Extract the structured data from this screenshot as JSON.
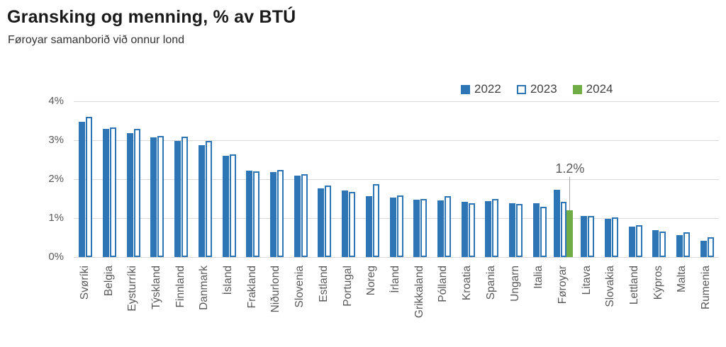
{
  "header": {
    "title": "Gransking og menning, % av BTÚ",
    "subtitle": "Føroyar samanborið við onnur lond"
  },
  "colors": {
    "blue": "#2e75b6",
    "green": "#70ad47",
    "grid": "#d9d9d9",
    "axis_text": "#595959",
    "legend_text": "#404040",
    "annotation_line": "#a6a6a6"
  },
  "chart_data": {
    "type": "bar",
    "title": "Gransking og menning, % av BTÚ",
    "subtitle": "Føroyar samanborið við onnur lond",
    "categories": [
      "Svøríki",
      "Belgia",
      "Eysturríki",
      "Týskland",
      "Finnland",
      "Danmark",
      "Ísland",
      "Frakland",
      "Niðurlond",
      "Slovenia",
      "Estland",
      "Portugal",
      "Noreg",
      "Írland",
      "Grikkaland",
      "Pólland",
      "Kroatia",
      "Spania",
      "Ungarn",
      "Italia",
      "Føroyar",
      "Litava",
      "Slovakia",
      "Lettland",
      "Kýpros",
      "Malta",
      "Rumenia"
    ],
    "series": [
      {
        "name": "2022",
        "style": "solid",
        "color": "#2e75b6",
        "values": [
          3.47,
          3.3,
          3.18,
          3.08,
          2.98,
          2.88,
          2.6,
          2.22,
          2.18,
          2.1,
          1.77,
          1.71,
          1.56,
          1.53,
          1.48,
          1.45,
          1.42,
          1.43,
          1.39,
          1.38,
          1.72,
          1.06,
          0.98,
          0.79,
          0.69,
          0.57,
          0.42
        ]
      },
      {
        "name": "2023",
        "style": "outline",
        "color": "#2e75b6",
        "values": [
          3.6,
          3.32,
          3.29,
          3.11,
          3.09,
          2.98,
          2.63,
          2.2,
          2.24,
          2.13,
          1.84,
          1.68,
          1.87,
          1.58,
          1.49,
          1.56,
          1.39,
          1.49,
          1.37,
          1.3,
          1.41,
          1.05,
          1.02,
          0.81,
          0.66,
          0.63,
          0.51
        ]
      },
      {
        "name": "2024",
        "style": "solid",
        "color": "#70ad47",
        "values": [
          null,
          null,
          null,
          null,
          null,
          null,
          null,
          null,
          null,
          null,
          null,
          null,
          null,
          null,
          null,
          null,
          null,
          null,
          null,
          null,
          1.2,
          null,
          null,
          null,
          null,
          null,
          null
        ]
      }
    ],
    "ylim": [
      0,
      4
    ],
    "y_tick_labels": [
      "0%",
      "1%",
      "2%",
      "3%",
      "4%"
    ],
    "xlabel": "",
    "ylabel": "",
    "grid": true,
    "legend_position": "top-right",
    "annotation": {
      "text": "1.2%",
      "category": "Føroyar",
      "series": "2024",
      "value": 1.2
    }
  }
}
